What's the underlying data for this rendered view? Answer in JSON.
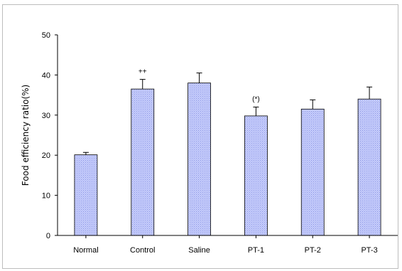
{
  "chart_data": {
    "type": "bar",
    "title": "",
    "xlabel": "",
    "ylabel": "Food efficiency ratio(%)",
    "ylim": [
      0,
      50
    ],
    "yticks": [
      0,
      10,
      20,
      30,
      40,
      50
    ],
    "grid": false,
    "categories": [
      "Normal",
      "Control",
      "Saline",
      "PT-1",
      "PT-2",
      "PT-3"
    ],
    "values": [
      20.1,
      36.5,
      38.0,
      29.8,
      31.5,
      34.0
    ],
    "errors": [
      0.6,
      2.4,
      2.5,
      2.2,
      2.3,
      3.0
    ],
    "annotations": [
      "",
      "++",
      "",
      "(*)",
      "",
      ""
    ],
    "colors": {
      "bar_fill": "#c6cdfb",
      "bar_stroke": "#000000",
      "pattern_dot": "#8e97e6"
    }
  }
}
